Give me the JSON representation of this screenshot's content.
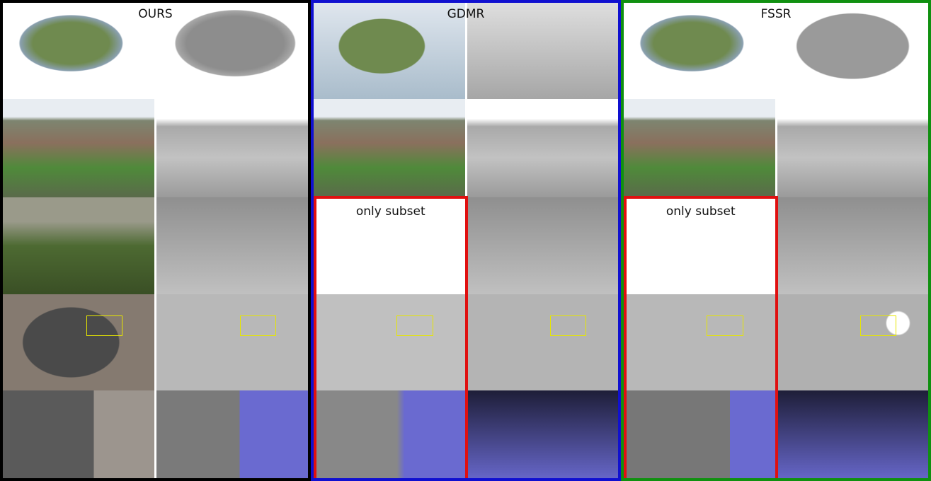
{
  "panels": [
    {
      "title": "OURS"
    },
    {
      "title": "GDMR",
      "note": "only subset"
    },
    {
      "title": "FSSR",
      "note": "only subset"
    }
  ]
}
